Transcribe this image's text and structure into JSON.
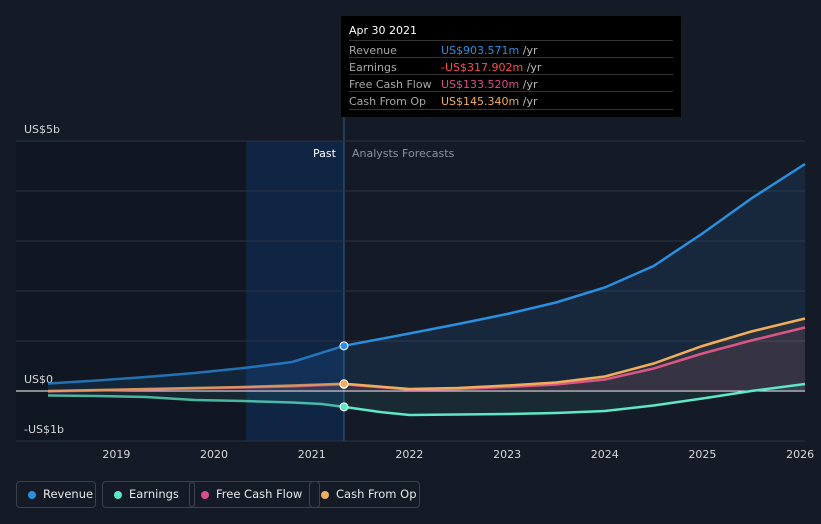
{
  "chart_data": {
    "type": "area",
    "ylabels": [
      {
        "value": 5000,
        "label": "US$5b"
      },
      {
        "value": 0,
        "label": "US$0"
      },
      {
        "value": -1000,
        "label": "-US$1b"
      }
    ],
    "ylim": [
      -1000,
      5000
    ],
    "xlim": [
      2018.3,
      2026.05
    ],
    "xticks": [
      2019,
      2020,
      2021,
      2022,
      2023,
      2024,
      2025,
      2026
    ],
    "xtick_labels": [
      "2019",
      "2020",
      "2021",
      "2022",
      "2023",
      "2024",
      "2025",
      "2026"
    ],
    "past_label": "Past",
    "forecast_label": "Analysts Forecasts",
    "now_x": 2021.33,
    "series": [
      {
        "name": "Revenue",
        "color": "#2a8fe0",
        "past": [
          [
            2018.3,
            150
          ],
          [
            2018.8,
            210
          ],
          [
            2019.3,
            280
          ],
          [
            2019.8,
            360
          ],
          [
            2020.3,
            460
          ],
          [
            2020.8,
            580
          ],
          [
            2021.33,
            903.571
          ]
        ],
        "forecast": [
          [
            2021.33,
            903.571
          ],
          [
            2022,
            1150
          ],
          [
            2022.5,
            1340
          ],
          [
            2023,
            1540
          ],
          [
            2023.5,
            1770
          ],
          [
            2024,
            2070
          ],
          [
            2024.5,
            2500
          ],
          [
            2025,
            3150
          ],
          [
            2025.5,
            3850
          ],
          [
            2026.05,
            4540
          ]
        ]
      },
      {
        "name": "Earnings",
        "color": "#5ee8c8",
        "past": [
          [
            2018.3,
            -90
          ],
          [
            2018.8,
            -100
          ],
          [
            2019.3,
            -120
          ],
          [
            2019.8,
            -180
          ],
          [
            2020.3,
            -200
          ],
          [
            2020.8,
            -230
          ],
          [
            2021.1,
            -260
          ],
          [
            2021.33,
            -317.902
          ]
        ],
        "forecast": [
          [
            2021.33,
            -317.902
          ],
          [
            2021.7,
            -420
          ],
          [
            2022,
            -480
          ],
          [
            2022.5,
            -470
          ],
          [
            2023,
            -460
          ],
          [
            2023.5,
            -440
          ],
          [
            2024,
            -400
          ],
          [
            2024.5,
            -290
          ],
          [
            2025,
            -150
          ],
          [
            2025.5,
            0
          ],
          [
            2026.05,
            140
          ]
        ]
      },
      {
        "name": "Free Cash Flow",
        "color": "#d94f8a",
        "past": [
          [
            2018.3,
            -10
          ],
          [
            2018.8,
            10
          ],
          [
            2019.3,
            30
          ],
          [
            2019.8,
            50
          ],
          [
            2020.3,
            70
          ],
          [
            2020.8,
            90
          ],
          [
            2021.33,
            133.52
          ]
        ],
        "forecast": [
          [
            2021.33,
            133.52
          ],
          [
            2022,
            30
          ],
          [
            2022.5,
            40
          ],
          [
            2023,
            80
          ],
          [
            2023.5,
            130
          ],
          [
            2024,
            230
          ],
          [
            2024.5,
            450
          ],
          [
            2025,
            750
          ],
          [
            2025.5,
            1010
          ],
          [
            2026.05,
            1270
          ]
        ]
      },
      {
        "name": "Cash From Op",
        "color": "#f0ad5c",
        "past": [
          [
            2018.3,
            0
          ],
          [
            2018.8,
            20
          ],
          [
            2019.3,
            40
          ],
          [
            2019.8,
            60
          ],
          [
            2020.3,
            80
          ],
          [
            2020.8,
            110
          ],
          [
            2021.33,
            145.34
          ]
        ],
        "forecast": [
          [
            2021.33,
            145.34
          ],
          [
            2022,
            40
          ],
          [
            2022.5,
            60
          ],
          [
            2023,
            110
          ],
          [
            2023.5,
            170
          ],
          [
            2024,
            290
          ],
          [
            2024.5,
            550
          ],
          [
            2025,
            900
          ],
          [
            2025.5,
            1190
          ],
          [
            2026.05,
            1450
          ]
        ]
      }
    ]
  },
  "tooltip": {
    "date": "Apr 30 2021",
    "rows": [
      {
        "label": "Revenue",
        "value": "US$903.571m",
        "unit": " /yr",
        "color": "#2a8fe0"
      },
      {
        "label": "Earnings",
        "value": "-US$317.902m",
        "unit": " /yr",
        "color": "#ff4d4d"
      },
      {
        "label": "Free Cash Flow",
        "value": "US$133.520m",
        "unit": " /yr",
        "color": "#d94f8a"
      },
      {
        "label": "Cash From Op",
        "value": "US$145.340m",
        "unit": " /yr",
        "color": "#f0ad5c"
      }
    ]
  },
  "legend": [
    {
      "label": "Revenue",
      "color": "#2a8fe0"
    },
    {
      "label": "Earnings",
      "color": "#5ee8c8"
    },
    {
      "label": "Free Cash Flow",
      "color": "#d94f8a"
    },
    {
      "label": "Cash From Op",
      "color": "#f0ad5c"
    }
  ]
}
